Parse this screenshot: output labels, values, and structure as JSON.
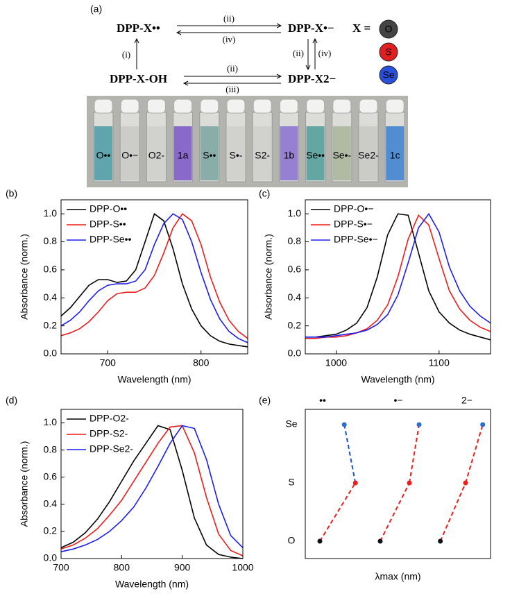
{
  "scheme": {
    "label": "(a)",
    "species": [
      "DPP-X••",
      "DPP-X•−",
      "DPP-X-OH",
      "DPP-X2−"
    ],
    "arrow_labels": [
      "(ii)",
      "(iv)",
      "(i)",
      "(ii)",
      "(iv)",
      "(ii)",
      "(iii)"
    ],
    "x_legend": "X =",
    "atoms": [
      {
        "label": "O",
        "color": "#444444"
      },
      {
        "label": "S",
        "color": "#e02020"
      },
      {
        "label": "Se",
        "color": "#2a4fd8"
      }
    ],
    "vials": [
      {
        "label": "O••",
        "color": "#4a9aa6"
      },
      {
        "label": "O•−",
        "color": "#c9cac6"
      },
      {
        "label": "O2-",
        "color": "#cfd0cb"
      },
      {
        "label": "1a",
        "color": "#7a55c8"
      },
      {
        "label": "S••",
        "color": "#7aa6a2"
      },
      {
        "label": "S•-",
        "color": "#cfd0cc"
      },
      {
        "label": "S2-",
        "color": "#cfd0cc"
      },
      {
        "label": "1b",
        "color": "#8a70d0"
      },
      {
        "label": "Se••",
        "color": "#4f9c98"
      },
      {
        "label": "Se•-",
        "color": "#a9b49a"
      },
      {
        "label": "Se2-",
        "color": "#c8c9c4"
      },
      {
        "label": "1c",
        "color": "#3a7ed0"
      }
    ]
  },
  "chart_data": [
    {
      "type": "line",
      "panel": "(b)",
      "x_label": "Wavelength (nm)",
      "y_label": "Absorbance (norm.)",
      "xlim": [
        650,
        850
      ],
      "xticks": [
        700,
        800
      ],
      "ylim": [
        0,
        1.1
      ],
      "yticks": [
        {
          "value": 0,
          "label": "0.0"
        },
        0.2,
        0.4,
        0.6,
        0.8,
        {
          "value": 1,
          "label": "1.0"
        }
      ],
      "legend": "upper left",
      "x": [
        650,
        660,
        670,
        680,
        690,
        700,
        710,
        720,
        730,
        740,
        750,
        760,
        770,
        780,
        790,
        800,
        810,
        820,
        830,
        840,
        850
      ],
      "series": [
        {
          "name": "DPP-O••",
          "color": "#000000",
          "values": [
            0.27,
            0.33,
            0.41,
            0.49,
            0.53,
            0.53,
            0.51,
            0.52,
            0.6,
            0.8,
            1.0,
            0.95,
            0.75,
            0.5,
            0.32,
            0.2,
            0.13,
            0.09,
            0.07,
            0.06,
            0.05
          ]
        },
        {
          "name": "DPP-S••",
          "color": "#ee1c1c",
          "values": [
            0.13,
            0.15,
            0.18,
            0.23,
            0.3,
            0.38,
            0.43,
            0.44,
            0.44,
            0.47,
            0.56,
            0.72,
            0.9,
            1.0,
            0.95,
            0.78,
            0.55,
            0.37,
            0.24,
            0.16,
            0.11
          ]
        },
        {
          "name": "DPP-Se••",
          "color": "#1c1cee",
          "values": [
            0.2,
            0.24,
            0.3,
            0.38,
            0.45,
            0.49,
            0.5,
            0.5,
            0.52,
            0.6,
            0.78,
            0.93,
            1.0,
            0.96,
            0.8,
            0.58,
            0.39,
            0.25,
            0.16,
            0.11,
            0.08
          ]
        }
      ]
    },
    {
      "type": "line",
      "panel": "(c)",
      "x_label": "Wavelength (nm)",
      "y_label": "Absorbance (norm.)",
      "xlim": [
        970,
        1150
      ],
      "xticks": [
        1000,
        1100
      ],
      "ylim": [
        0,
        1.1
      ],
      "yticks": [
        {
          "value": 0,
          "label": "0.0"
        },
        0.2,
        0.4,
        0.6,
        0.8,
        {
          "value": 1,
          "label": "1.0"
        }
      ],
      "legend": "upper left",
      "x": [
        970,
        980,
        990,
        1000,
        1010,
        1020,
        1030,
        1040,
        1050,
        1060,
        1070,
        1080,
        1090,
        1100,
        1110,
        1120,
        1130,
        1140,
        1150
      ],
      "series": [
        {
          "name": "DPP-O•−",
          "color": "#000000",
          "values": [
            0.12,
            0.12,
            0.13,
            0.14,
            0.17,
            0.22,
            0.33,
            0.55,
            0.85,
            1.0,
            0.99,
            0.72,
            0.45,
            0.3,
            0.22,
            0.17,
            0.14,
            0.12,
            0.1
          ]
        },
        {
          "name": "DPP-S•−",
          "color": "#ee1c1c",
          "values": [
            0.11,
            0.11,
            0.12,
            0.12,
            0.13,
            0.15,
            0.18,
            0.24,
            0.35,
            0.55,
            0.82,
            0.99,
            0.92,
            0.68,
            0.45,
            0.32,
            0.24,
            0.19,
            0.16
          ]
        },
        {
          "name": "DPP-Se•−",
          "color": "#1c1cee",
          "values": [
            0.12,
            0.12,
            0.12,
            0.13,
            0.14,
            0.15,
            0.17,
            0.21,
            0.28,
            0.42,
            0.65,
            0.9,
            1.0,
            0.87,
            0.62,
            0.45,
            0.34,
            0.27,
            0.22
          ]
        }
      ]
    },
    {
      "type": "line",
      "panel": "(d)",
      "x_label": "Wavelength (nm)",
      "y_label": "Absorbance (norm.)",
      "xlim": [
        700,
        1000
      ],
      "xticks": [
        700,
        800,
        900,
        1000
      ],
      "ylim": [
        0,
        1.1
      ],
      "yticks": [
        {
          "value": 0,
          "label": "0.0"
        },
        0.2,
        0.4,
        0.6,
        0.8,
        {
          "value": 1,
          "label": "1.0"
        }
      ],
      "legend": "upper left",
      "x": [
        700,
        720,
        740,
        760,
        780,
        800,
        820,
        840,
        860,
        880,
        900,
        920,
        940,
        960,
        980,
        1000
      ],
      "series": [
        {
          "name": "DPP-O2-",
          "color": "#000000",
          "values": [
            0.08,
            0.12,
            0.19,
            0.29,
            0.42,
            0.57,
            0.72,
            0.85,
            0.98,
            0.95,
            0.65,
            0.3,
            0.1,
            0.03,
            0.01,
            0.0
          ]
        },
        {
          "name": "DPP-S2-",
          "color": "#ee1c1c",
          "values": [
            0.07,
            0.1,
            0.15,
            0.22,
            0.32,
            0.43,
            0.57,
            0.71,
            0.85,
            0.97,
            0.98,
            0.78,
            0.45,
            0.18,
            0.06,
            0.02
          ]
        },
        {
          "name": "DPP-Se2-",
          "color": "#1c1cee",
          "values": [
            0.05,
            0.07,
            0.1,
            0.14,
            0.2,
            0.28,
            0.38,
            0.52,
            0.68,
            0.85,
            0.98,
            0.96,
            0.73,
            0.4,
            0.17,
            0.08
          ]
        }
      ]
    },
    {
      "type": "dot",
      "panel": "(e)",
      "x_label": "λmax (nm)",
      "categories": [
        "O",
        "S",
        "Se"
      ],
      "point_colors": [
        "#111111",
        "#ee1c1c",
        "#2a6fd0"
      ],
      "groups": [
        {
          "name": "••",
          "xlim": [
            740,
            790
          ],
          "values": [
            750,
            782,
            772
          ],
          "segment_colors": [
            "#ee1c1c",
            "#1c50c8"
          ]
        },
        {
          "name": "•−",
          "xlim": [
            1055,
            1095
          ],
          "values": [
            1062,
            1083,
            1090
          ],
          "segment_colors": [
            "#ee1c1c",
            "#ee1c1c"
          ]
        },
        {
          "name": "2−",
          "xlim": [
            860,
            915
          ],
          "values": [
            868,
            893,
            910
          ],
          "segment_colors": [
            "#ee1c1c",
            "#ee1c1c"
          ]
        }
      ]
    }
  ]
}
